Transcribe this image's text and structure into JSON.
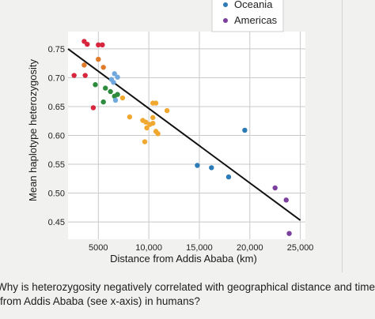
{
  "question": "Why is heterozygosity negatively correlated with geographical distance and time from Addis Ababa (see x-axis) in humans?",
  "chart_data": {
    "type": "scatter",
    "title": "",
    "xlabel": "Distance from Addis Ababa (km)",
    "ylabel": "Mean haplotype heterozygosity",
    "xlim": [
      2000,
      25500
    ],
    "ylim": [
      0.42,
      0.78
    ],
    "xticks": [
      5000,
      10000,
      15000,
      20000,
      25000
    ],
    "xtick_labels": [
      "5000",
      "10,000",
      "15,000",
      "20,000",
      "25,000"
    ],
    "yticks": [
      0.45,
      0.5,
      0.55,
      0.6,
      0.65,
      0.7,
      0.75
    ],
    "ytick_labels": [
      "0.45",
      "0.50",
      "0.55",
      "0.60",
      "0.65",
      "0.70",
      "0.75"
    ],
    "grid": true,
    "legend_position": "top-right",
    "legend": [
      {
        "label": "Oceania",
        "color": "#2c7bb6"
      },
      {
        "label": "Americas",
        "color": "#7b3f9e"
      }
    ],
    "trendline": {
      "x": [
        2000,
        25000
      ],
      "y": [
        0.75,
        0.453
      ],
      "color": "#111111"
    },
    "series": [
      {
        "color": "#d7263d",
        "points": [
          [
            3600,
            0.763
          ],
          [
            3900,
            0.758
          ],
          [
            5000,
            0.757
          ],
          [
            5400,
            0.757
          ],
          [
            2600,
            0.704
          ],
          [
            3700,
            0.704
          ],
          [
            4500,
            0.648
          ]
        ]
      },
      {
        "color": "#e07b2a",
        "points": [
          [
            3600,
            0.722
          ],
          [
            5000,
            0.732
          ],
          [
            5500,
            0.718
          ]
        ]
      },
      {
        "color": "#2e8b3e",
        "points": [
          [
            4700,
            0.688
          ],
          [
            5700,
            0.682
          ],
          [
            6200,
            0.676
          ],
          [
            6600,
            0.668
          ],
          [
            5500,
            0.658
          ],
          [
            6900,
            0.671
          ]
        ]
      },
      {
        "color": "#6fa8dc",
        "points": [
          [
            6300,
            0.697
          ],
          [
            6600,
            0.707
          ],
          [
            6900,
            0.701
          ],
          [
            6500,
            0.692
          ],
          [
            6700,
            0.661
          ]
        ]
      },
      {
        "color": "#f0a830",
        "points": [
          [
            7400,
            0.665
          ],
          [
            10400,
            0.656
          ],
          [
            10700,
            0.656
          ],
          [
            11800,
            0.643
          ],
          [
            8100,
            0.632
          ],
          [
            9400,
            0.626
          ],
          [
            9700,
            0.623
          ],
          [
            10100,
            0.619
          ],
          [
            10400,
            0.621
          ],
          [
            9800,
            0.613
          ],
          [
            10700,
            0.607
          ],
          [
            10900,
            0.603
          ],
          [
            9600,
            0.589
          ],
          [
            10400,
            0.631
          ]
        ]
      },
      {
        "color": "#2c7bb6",
        "points": [
          [
            19500,
            0.609
          ],
          [
            14800,
            0.548
          ],
          [
            16200,
            0.544
          ],
          [
            17900,
            0.528
          ]
        ]
      },
      {
        "color": "#7b3f9e",
        "points": [
          [
            22500,
            0.509
          ],
          [
            23600,
            0.488
          ],
          [
            23900,
            0.43
          ]
        ]
      }
    ]
  }
}
